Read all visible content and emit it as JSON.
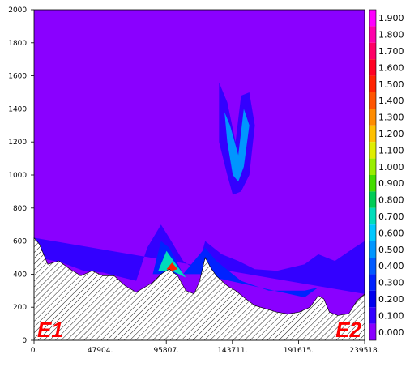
{
  "chart_data": {
    "type": "heatmap",
    "title": "",
    "xlabel": "",
    "ylabel": "",
    "xlim": [
      0,
      239518
    ],
    "ylim": [
      0,
      2000
    ],
    "x_tick_labels": [
      "0.",
      "47904.",
      "95807.",
      "143711.",
      "191615.",
      "239518."
    ],
    "x_tick_values": [
      0,
      47904,
      95807,
      143711,
      191615,
      239518
    ],
    "y_tick_labels": [
      "0.",
      "200.",
      "400.",
      "600.",
      "800.",
      "1000.",
      "1200.",
      "1400.",
      "1600.",
      "1800.",
      "2000."
    ],
    "y_tick_values": [
      0,
      200,
      400,
      600,
      800,
      1000,
      1200,
      1400,
      1600,
      1800,
      2000
    ],
    "endpoint_labels": {
      "left": "E1",
      "right": "E2"
    },
    "background_color": "#8a00ff",
    "terrain_hatched": true,
    "terrain_profile": [
      [
        0,
        620
      ],
      [
        4000,
        580
      ],
      [
        10000,
        460
      ],
      [
        18000,
        480
      ],
      [
        26000,
        430
      ],
      [
        34000,
        390
      ],
      [
        42000,
        420
      ],
      [
        50000,
        390
      ],
      [
        58000,
        390
      ],
      [
        66000,
        330
      ],
      [
        74000,
        290
      ],
      [
        80000,
        320
      ],
      [
        86000,
        350
      ],
      [
        92000,
        400
      ],
      [
        98000,
        430
      ],
      [
        104000,
        390
      ],
      [
        110000,
        300
      ],
      [
        116000,
        280
      ],
      [
        120000,
        360
      ],
      [
        124000,
        500
      ],
      [
        128000,
        440
      ],
      [
        132000,
        390
      ],
      [
        136000,
        360
      ],
      [
        140000,
        330
      ],
      [
        146000,
        300
      ],
      [
        152000,
        260
      ],
      [
        160000,
        210
      ],
      [
        168000,
        190
      ],
      [
        176000,
        170
      ],
      [
        184000,
        160
      ],
      [
        192000,
        170
      ],
      [
        200000,
        200
      ],
      [
        206000,
        270
      ],
      [
        210000,
        250
      ],
      [
        214000,
        170
      ],
      [
        220000,
        150
      ],
      [
        228000,
        160
      ],
      [
        234000,
        240
      ],
      [
        239518,
        280
      ]
    ],
    "colorbar": {
      "levels": [
        "1.900",
        "1.800",
        "1.700",
        "1.600",
        "1.500",
        "1.400",
        "1.300",
        "1.200",
        "1.100",
        "1.000",
        "0.900",
        "0.800",
        "0.700",
        "0.600",
        "0.500",
        "0.400",
        "0.300",
        "0.200",
        "0.100",
        "0.000"
      ],
      "colors": [
        "#ff00ff",
        "#ff00aa",
        "#ff0066",
        "#ff0022",
        "#ff2200",
        "#ff5500",
        "#ff8c00",
        "#ffc000",
        "#e0ee00",
        "#99ee00",
        "#44dd00",
        "#00cc55",
        "#00ddbb",
        "#00c8ff",
        "#0096ff",
        "#005aff",
        "#0022ff",
        "#0000ee",
        "#3300ff",
        "#8a00ff"
      ]
    },
    "contour_blobs": [
      {
        "level": 0.1,
        "outline": [
          [
            0,
            400
          ],
          [
            3000,
            500
          ],
          [
            20000,
            470
          ],
          [
            36000,
            420
          ],
          [
            50000,
            410
          ],
          [
            64000,
            380
          ],
          [
            74000,
            360
          ],
          [
            82000,
            560
          ],
          [
            92000,
            700
          ],
          [
            98000,
            620
          ],
          [
            108000,
            480
          ],
          [
            118000,
            420
          ],
          [
            124000,
            600
          ],
          [
            136000,
            520
          ],
          [
            148000,
            480
          ],
          [
            160000,
            430
          ],
          [
            176000,
            420
          ],
          [
            196000,
            460
          ],
          [
            206000,
            520
          ],
          [
            218000,
            480
          ],
          [
            232000,
            560
          ],
          [
            239518,
            600
          ],
          [
            239518,
            280
          ],
          [
            0,
            620
          ]
        ]
      },
      {
        "level": 0.3,
        "outline": [
          [
            86000,
            400
          ],
          [
            92000,
            600
          ],
          [
            98000,
            560
          ],
          [
            108000,
            400
          ],
          [
            124000,
            560
          ],
          [
            132000,
            480
          ],
          [
            150000,
            360
          ],
          [
            170000,
            300
          ],
          [
            196000,
            300
          ],
          [
            206000,
            320
          ],
          [
            196000,
            260
          ],
          [
            120000,
            400
          ]
        ]
      },
      {
        "level": 0.7,
        "outline": [
          [
            90000,
            420
          ],
          [
            96000,
            540
          ],
          [
            102000,
            470
          ],
          [
            110000,
            380
          ],
          [
            100000,
            420
          ]
        ]
      },
      {
        "level": 1.5,
        "outline": [
          [
            96000,
            430
          ],
          [
            100000,
            470
          ],
          [
            104000,
            430
          ],
          [
            100000,
            420
          ]
        ]
      },
      {
        "level": 0.1,
        "outline": [
          [
            134000,
            1560
          ],
          [
            140000,
            1440
          ],
          [
            146000,
            1200
          ],
          [
            150000,
            1480
          ],
          [
            156000,
            1500
          ],
          [
            160000,
            1300
          ],
          [
            156000,
            1000
          ],
          [
            150000,
            900
          ],
          [
            144000,
            880
          ],
          [
            140000,
            1000
          ],
          [
            134000,
            1200
          ]
        ]
      },
      {
        "level": 0.5,
        "outline": [
          [
            138000,
            1380
          ],
          [
            142000,
            1300
          ],
          [
            148000,
            1120
          ],
          [
            152000,
            1400
          ],
          [
            156000,
            1300
          ],
          [
            152000,
            1050
          ],
          [
            148000,
            960
          ],
          [
            144000,
            1000
          ],
          [
            140000,
            1200
          ]
        ]
      }
    ]
  }
}
